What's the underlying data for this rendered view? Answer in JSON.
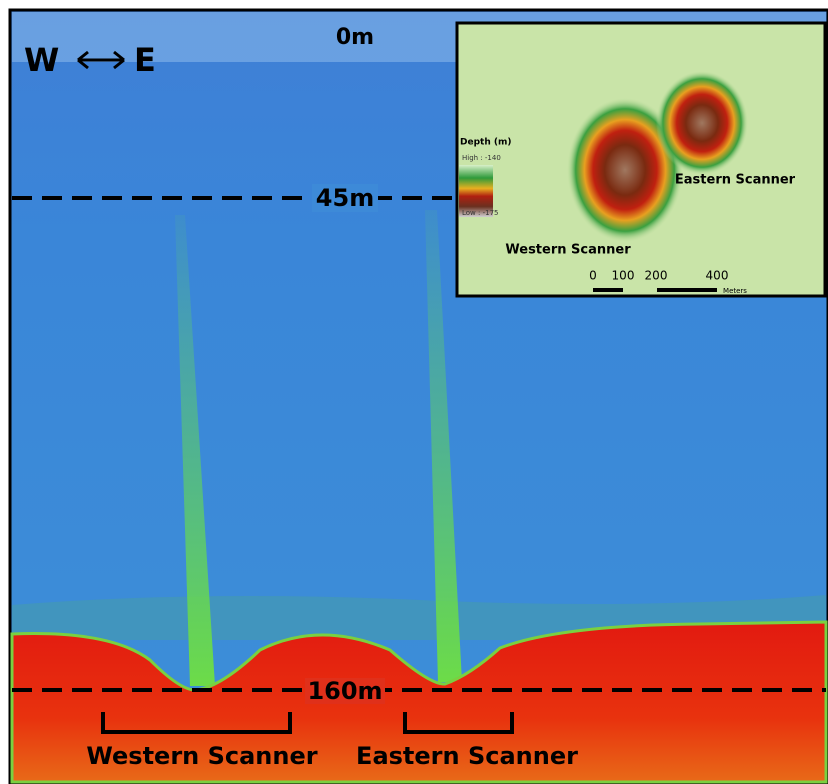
{
  "echogram": {
    "direction": {
      "west": "W",
      "east": "E"
    },
    "depth_labels": [
      "0m",
      "45m",
      "160m"
    ],
    "scanner_labels": [
      "Western Scanner",
      "Eastern Scanner"
    ]
  },
  "inset": {
    "legend_title": "Depth (m)",
    "legend_high": "High : -140",
    "legend_low": "Low : -175",
    "scanner_labels": [
      "Eastern Scanner",
      "Western Scanner"
    ],
    "scale_ticks": [
      "0",
      "100",
      "200",
      "400"
    ],
    "scale_unit": "Meters"
  }
}
